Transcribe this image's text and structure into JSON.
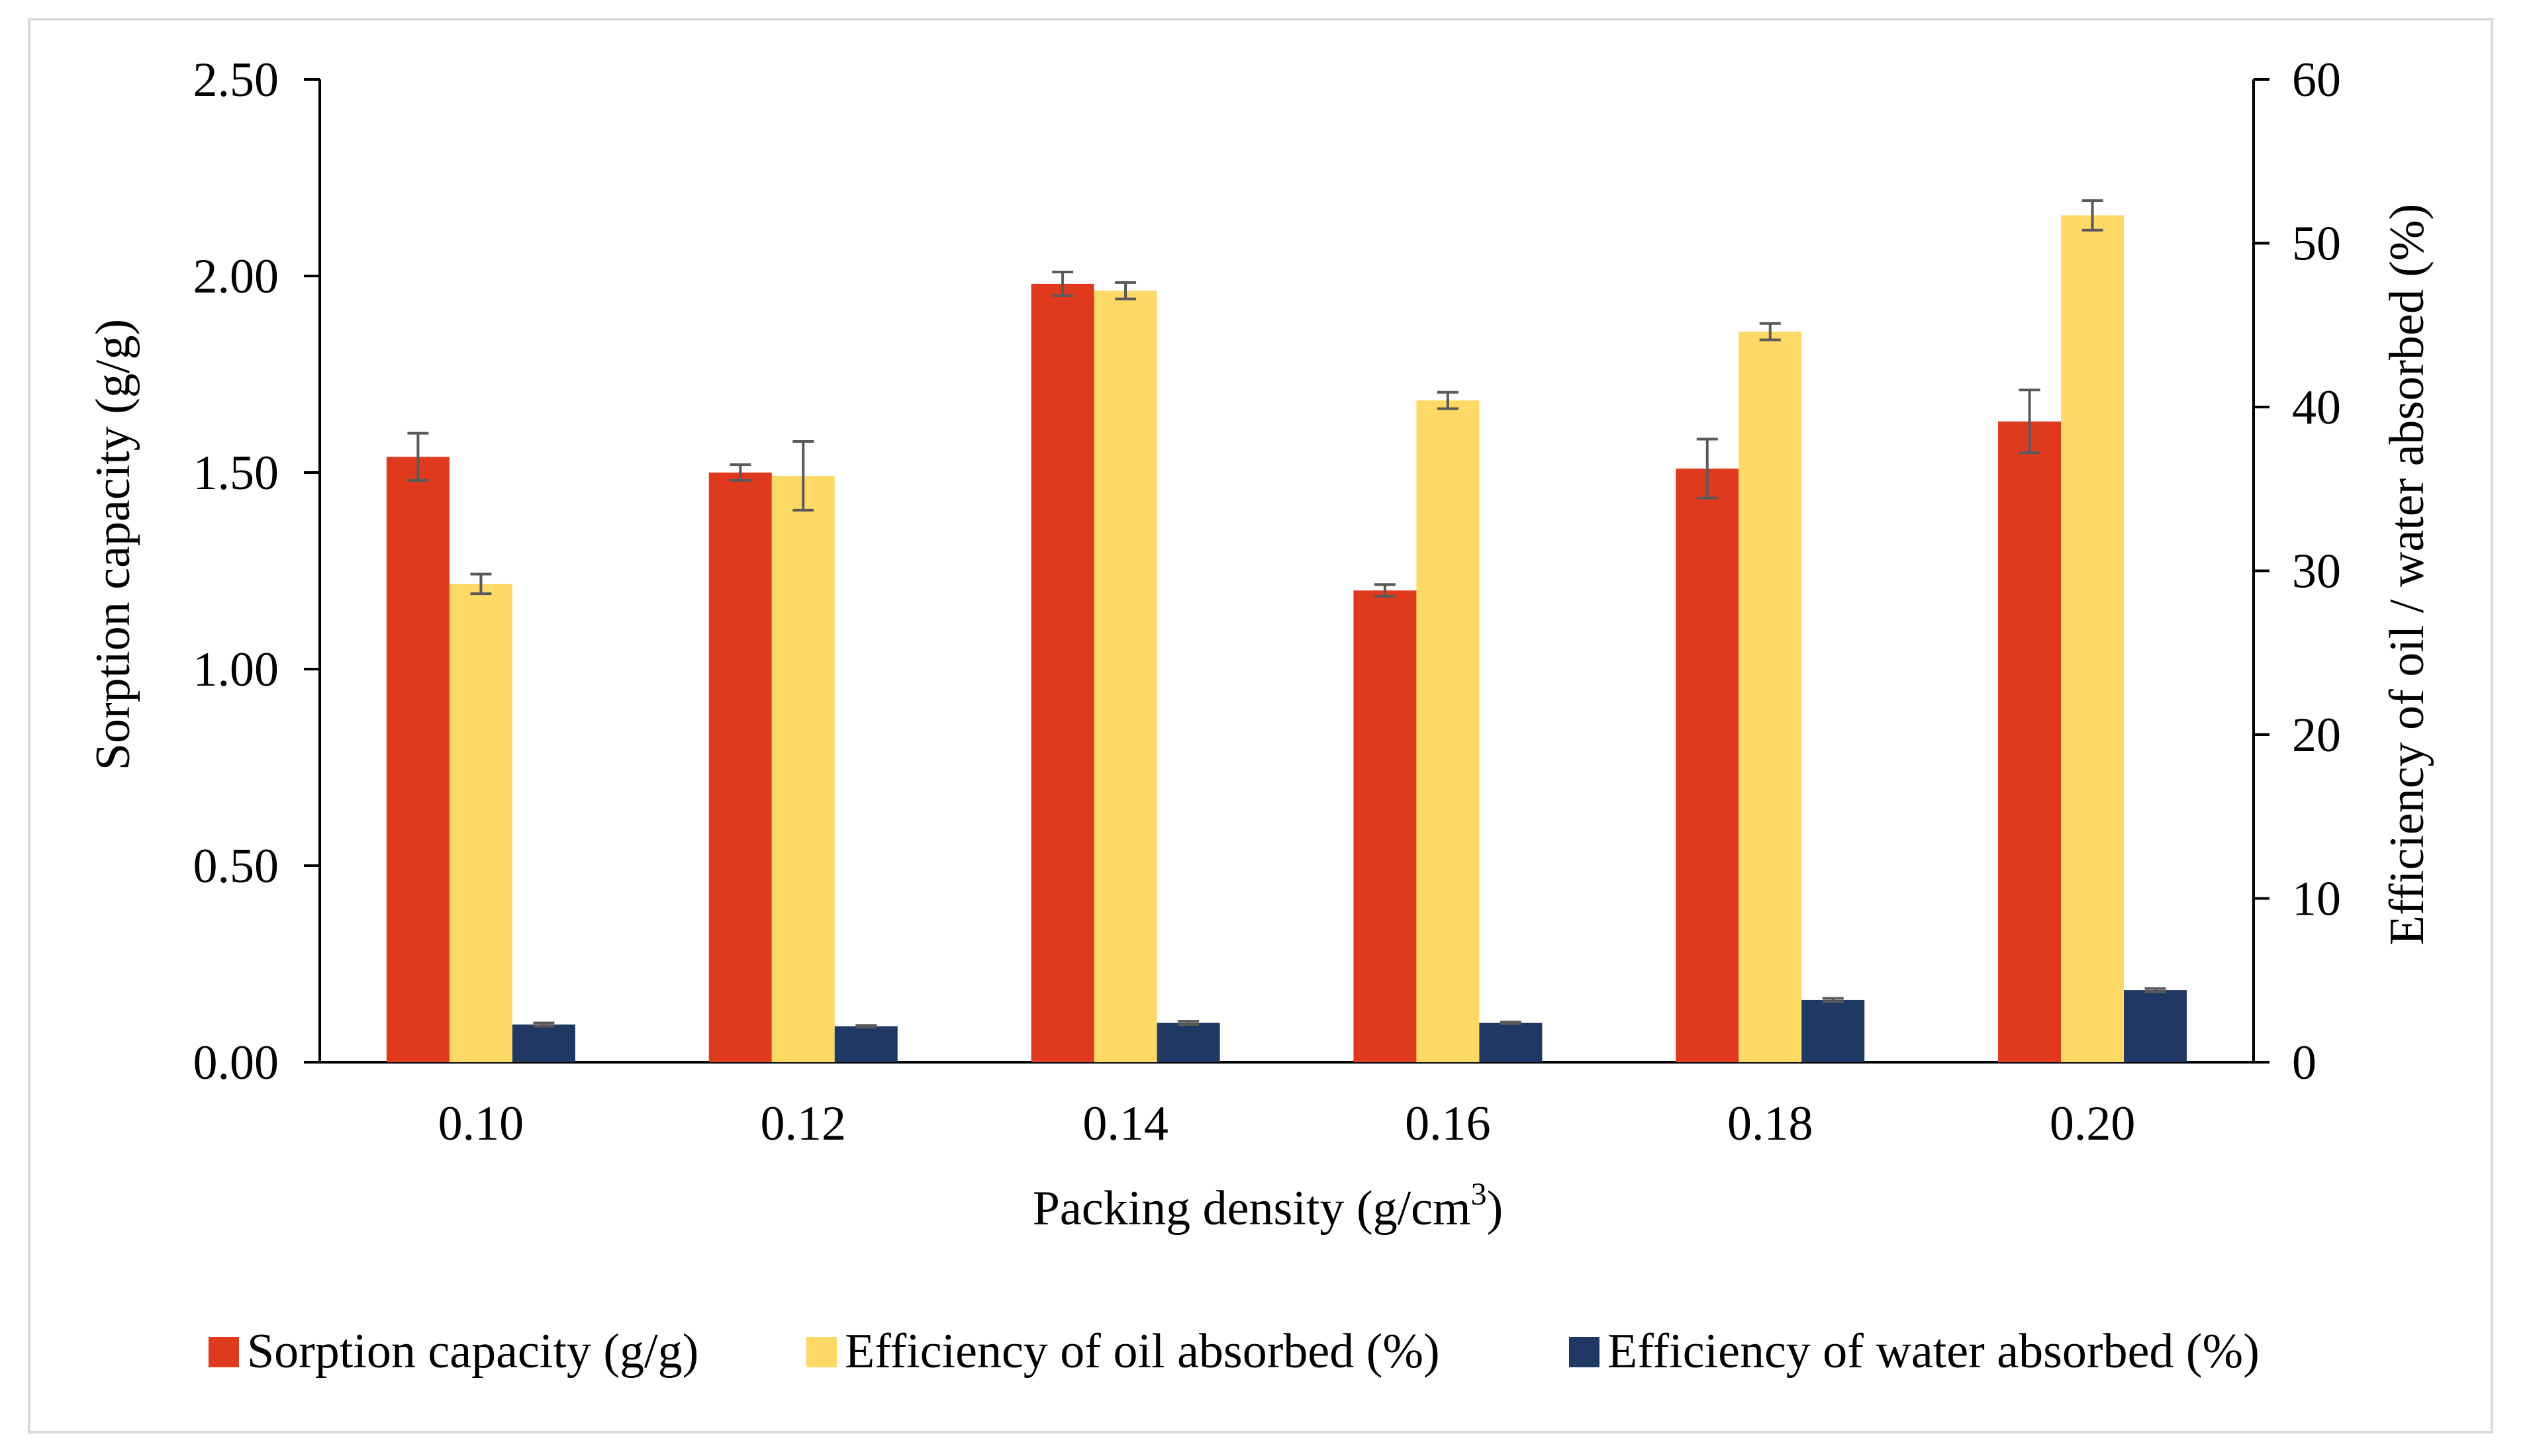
{
  "chart_data": {
    "type": "bar",
    "title": "",
    "xlabel": "Packing density (g/cm",
    "xlabel_superscript": "3",
    "xlabel_suffix": ")",
    "ylabel": "Sorption capacity (g/g)",
    "y2label": "Efficiency of oil / water absorbed (%)",
    "ylim": [
      0,
      2.5
    ],
    "y2lim": [
      0,
      60
    ],
    "y_ticks": [
      "0.00",
      "0.50",
      "1.00",
      "1.50",
      "2.00",
      "2.50"
    ],
    "y2_ticks": [
      "0",
      "10",
      "20",
      "30",
      "40",
      "50",
      "60"
    ],
    "categories": [
      "0.10",
      "0.12",
      "0.14",
      "0.16",
      "0.18",
      "0.20"
    ],
    "legend_position": "bottom",
    "series": [
      {
        "name": "Sorption capacity (g/g)",
        "axis": "left",
        "color": "#e03a1e",
        "values": [
          1.54,
          1.5,
          1.98,
          1.2,
          1.51,
          1.63
        ],
        "errors": [
          0.06,
          0.02,
          0.03,
          0.015,
          0.075,
          0.08
        ]
      },
      {
        "name": "Efficiency of oil absorbed (%)",
        "axis": "right",
        "color": "#fed966",
        "values": [
          29.2,
          35.8,
          47.1,
          40.4,
          44.6,
          51.7
        ],
        "errors": [
          0.6,
          2.1,
          0.5,
          0.5,
          0.5,
          0.9
        ]
      },
      {
        "name": "Efficiency of water absorbed (%)",
        "axis": "right",
        "color": "#1f3864",
        "values": [
          2.3,
          2.2,
          2.4,
          2.4,
          3.8,
          4.4
        ],
        "errors": [
          0.1,
          0.05,
          0.1,
          0.05,
          0.1,
          0.1
        ]
      }
    ]
  }
}
